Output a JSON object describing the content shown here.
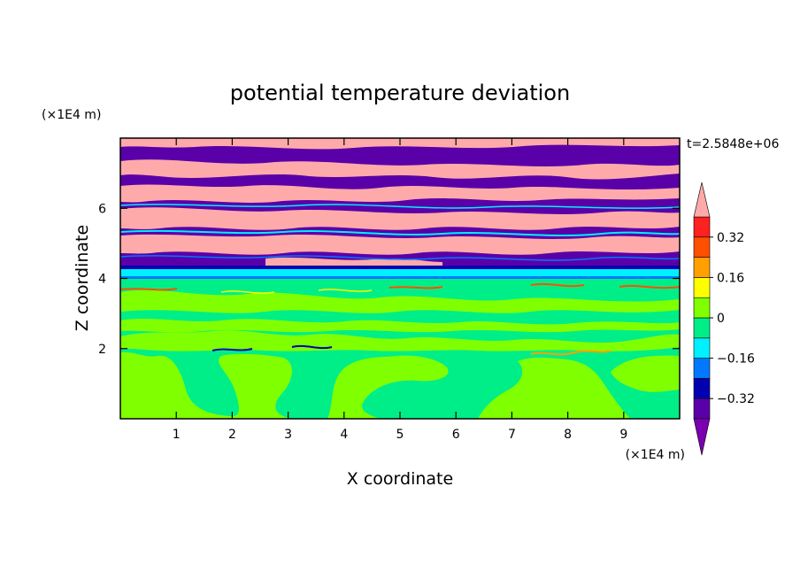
{
  "chart_data": {
    "type": "heatmap",
    "title": "potential temperature deviation",
    "xlabel": "X coordinate",
    "ylabel": "Z coordinate",
    "x_unit": "(×1E4 m)",
    "y_unit": "(×1E4 m)",
    "time_label": "t=2.5848e+06",
    "xlim": [
      0,
      10
    ],
    "ylim": [
      0,
      8
    ],
    "x_ticks": [
      1,
      2,
      3,
      4,
      5,
      6,
      7,
      8,
      9
    ],
    "y_ticks": [
      2,
      4,
      6
    ],
    "grid": false,
    "colorbar": {
      "levels": [
        -0.4,
        -0.32,
        -0.24,
        -0.16,
        -0.08,
        0,
        0.08,
        0.16,
        0.24,
        0.32,
        0.4
      ],
      "tick_values": [
        0.32,
        0.16,
        0,
        -0.16,
        -0.32
      ],
      "tick_labels": [
        "0.32",
        "0.16",
        "0",
        "−0.16",
        "−0.32"
      ],
      "colors_low_to_high": [
        "#7a00b0",
        "#5a00a8",
        "#0000b0",
        "#0078ff",
        "#00f0ff",
        "#00ee88",
        "#80ff00",
        "#ffff00",
        "#ffa000",
        "#ff5000",
        "#ff2020",
        "#ffaaaa"
      ]
    },
    "regions": {
      "lower_layer": {
        "z_range": [
          0,
          4.0
        ],
        "dominant_values": [
          "0",
          "0.08"
        ]
      },
      "interface": {
        "z_range": [
          4.0,
          4.3
        ],
        "dominant_values": [
          "-0.16",
          "-0.32"
        ]
      },
      "upper_layer": {
        "z_range": [
          4.3,
          8.0
        ],
        "alternating_bands": [
          "> 0.4",
          "< -0.4"
        ]
      }
    }
  }
}
